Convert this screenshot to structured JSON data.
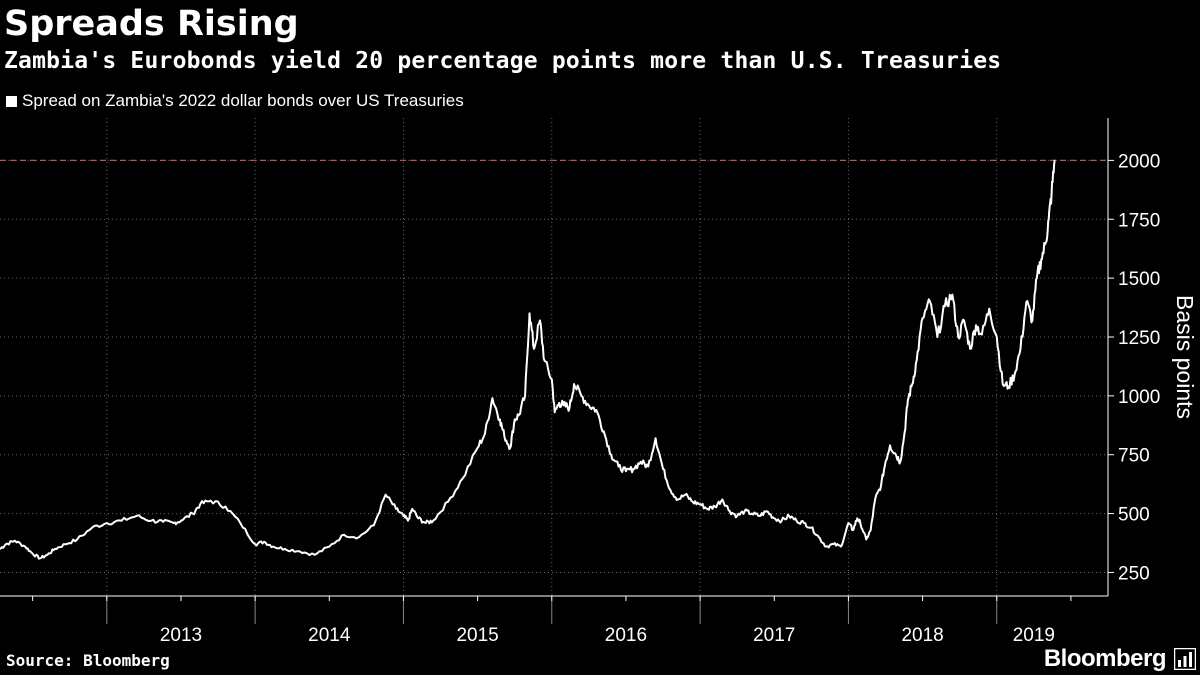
{
  "header": {
    "title": "Spreads Rising",
    "subtitle": "Zambia's Eurobonds yield 20 percentage points more than U.S. Treasuries"
  },
  "legend": {
    "label": "Spread on Zambia's 2022 dollar bonds over US Treasuries"
  },
  "footer": {
    "source": "Source: Bloomberg",
    "brand": "Bloomberg"
  },
  "colors": {
    "background": "#000000",
    "line": "#ffffff",
    "grid": "#666666",
    "reference_line": "#c0504d"
  },
  "chart_data": {
    "type": "line",
    "title": "Spreads Rising",
    "subtitle": "Zambia's Eurobonds yield 20 percentage points more than U.S. Treasuries",
    "xlabel": "",
    "ylabel": "Basis points",
    "ylim": [
      150,
      2180
    ],
    "yticks": [
      250,
      500,
      750,
      1000,
      1250,
      1500,
      1750,
      2000
    ],
    "xlim": [
      2012.28,
      2019.75
    ],
    "x_ticks": [
      2012.5,
      2013,
      2013.5,
      2014,
      2014.5,
      2015,
      2015.5,
      2016,
      2016.5,
      2017,
      2017.5,
      2018,
      2018.5,
      2019,
      2019.5
    ],
    "x_gridlines": [
      2013,
      2014,
      2015,
      2016,
      2017,
      2018,
      2019
    ],
    "x_labels": [
      {
        "x": 2013.5,
        "label": "2013"
      },
      {
        "x": 2014.5,
        "label": "2014"
      },
      {
        "x": 2015.5,
        "label": "2015"
      },
      {
        "x": 2016.5,
        "label": "2016"
      },
      {
        "x": 2017.5,
        "label": "2017"
      },
      {
        "x": 2018.5,
        "label": "2018"
      },
      {
        "x": 2019.25,
        "label": "2019"
      }
    ],
    "reference_line": {
      "y": 2000,
      "style": "dashed"
    },
    "legend": "top-left",
    "grid": true,
    "series": [
      {
        "name": "Spread on Zambia's 2022 dollar bonds over US Treasuries",
        "x": [
          2012.28,
          2012.32,
          2012.38,
          2012.45,
          2012.5,
          2012.55,
          2012.6,
          2012.65,
          2012.72,
          2012.8,
          2012.9,
          2013.0,
          2013.1,
          2013.2,
          2013.3,
          2013.38,
          2013.45,
          2013.5,
          2013.58,
          2013.63,
          2013.7,
          2013.8,
          2013.9,
          2014.0,
          2014.06,
          2014.12,
          2014.2,
          2014.3,
          2014.4,
          2014.5,
          2014.6,
          2014.7,
          2014.8,
          2014.88,
          2014.95,
          2015.0,
          2015.03,
          2015.06,
          2015.1,
          2015.15,
          2015.2,
          2015.3,
          2015.4,
          2015.5,
          2015.55,
          2015.6,
          2015.65,
          2015.68,
          2015.72,
          2015.75,
          2015.78,
          2015.82,
          2015.85,
          2015.88,
          2015.92,
          2015.95,
          2016.0,
          2016.02,
          2016.05,
          2016.08,
          2016.12,
          2016.15,
          2016.2,
          2016.25,
          2016.3,
          2016.35,
          2016.4,
          2016.45,
          2016.5,
          2016.55,
          2016.6,
          2016.65,
          2016.7,
          2016.75,
          2016.8,
          2016.85,
          2016.9,
          2016.95,
          2017.0,
          2017.05,
          2017.1,
          2017.15,
          2017.2,
          2017.25,
          2017.3,
          2017.35,
          2017.4,
          2017.45,
          2017.5,
          2017.55,
          2017.6,
          2017.65,
          2017.7,
          2017.75,
          2017.8,
          2017.85,
          2017.9,
          2017.95,
          2018.0,
          2018.03,
          2018.06,
          2018.08,
          2018.12,
          2018.15,
          2018.18,
          2018.22,
          2018.25,
          2018.28,
          2018.32,
          2018.35,
          2018.38,
          2018.4,
          2018.43,
          2018.46,
          2018.5,
          2018.55,
          2018.6,
          2018.65,
          2018.7,
          2018.74,
          2018.78,
          2018.82,
          2018.86,
          2018.9,
          2018.95,
          2019.0,
          2019.04,
          2019.08,
          2019.12,
          2019.16,
          2019.2,
          2019.24,
          2019.27,
          2019.3,
          2019.33,
          2019.35,
          2019.37,
          2019.39
        ],
        "values": [
          350,
          370,
          385,
          360,
          330,
          310,
          325,
          350,
          370,
          390,
          440,
          460,
          470,
          490,
          470,
          465,
          460,
          470,
          500,
          540,
          555,
          530,
          460,
          370,
          380,
          360,
          350,
          340,
          325,
          360,
          410,
          400,
          450,
          580,
          520,
          490,
          470,
          520,
          480,
          460,
          470,
          550,
          650,
          780,
          840,
          990,
          900,
          830,
          780,
          900,
          920,
          1000,
          1350,
          1200,
          1320,
          1150,
          1070,
          930,
          970,
          960,
          950,
          1050,
          1000,
          960,
          940,
          850,
          750,
          700,
          680,
          690,
          720,
          700,
          820,
          690,
          600,
          560,
          580,
          550,
          540,
          520,
          530,
          560,
          510,
          490,
          510,
          500,
          490,
          510,
          480,
          470,
          490,
          470,
          460,
          440,
          400,
          360,
          370,
          360,
          460,
          430,
          480,
          460,
          390,
          430,
          560,
          620,
          720,
          790,
          750,
          720,
          850,
          980,
          1050,
          1150,
          1330,
          1400,
          1250,
          1380,
          1430,
          1250,
          1320,
          1200,
          1300,
          1260,
          1370,
          1250,
          1050,
          1040,
          1090,
          1200,
          1400,
          1320,
          1500,
          1580,
          1650,
          1750,
          1860,
          2000
        ]
      }
    ]
  }
}
